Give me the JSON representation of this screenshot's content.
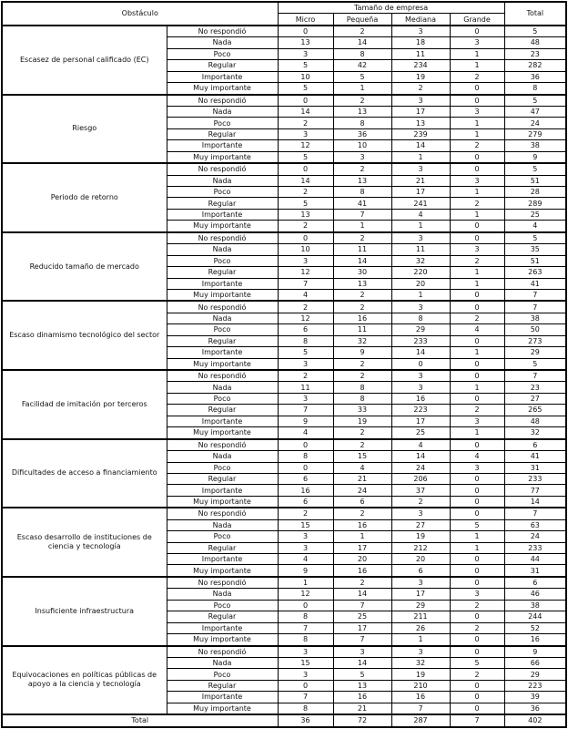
{
  "chart_data": {
    "type": "table",
    "title": "",
    "header": {
      "obstacle_label": "Obstáculo",
      "company_size_label": "Tamaño de empresa",
      "size_columns": [
        "Micro",
        "Pequeña",
        "Mediana",
        "Grande"
      ],
      "total_label": "Total"
    },
    "response_levels": [
      "No respondió",
      "Nada",
      "Poco",
      "Regular",
      "Importante",
      "Muy importante"
    ],
    "obstacles": [
      {
        "name": "Escasez de personal calificado (EC)",
        "values": [
          [
            0,
            2,
            3,
            0,
            5
          ],
          [
            13,
            14,
            18,
            3,
            48
          ],
          [
            3,
            8,
            11,
            1,
            23
          ],
          [
            5,
            42,
            234,
            1,
            282
          ],
          [
            10,
            5,
            19,
            2,
            36
          ],
          [
            5,
            1,
            2,
            0,
            8
          ]
        ]
      },
      {
        "name": "Riesgo",
        "values": [
          [
            0,
            2,
            3,
            0,
            5
          ],
          [
            14,
            13,
            17,
            3,
            47
          ],
          [
            2,
            8,
            13,
            1,
            24
          ],
          [
            3,
            36,
            239,
            1,
            279
          ],
          [
            12,
            10,
            14,
            2,
            38
          ],
          [
            5,
            3,
            1,
            0,
            9
          ]
        ]
      },
      {
        "name": "Periodo de retorno",
        "values": [
          [
            0,
            2,
            3,
            0,
            5
          ],
          [
            14,
            13,
            21,
            3,
            51
          ],
          [
            2,
            8,
            17,
            1,
            28
          ],
          [
            5,
            41,
            241,
            2,
            289
          ],
          [
            13,
            7,
            4,
            1,
            25
          ],
          [
            2,
            1,
            1,
            0,
            4
          ]
        ]
      },
      {
        "name": "Reducido tamaño de mercado",
        "values": [
          [
            0,
            2,
            3,
            0,
            5
          ],
          [
            10,
            11,
            11,
            3,
            35
          ],
          [
            3,
            14,
            32,
            2,
            51
          ],
          [
            12,
            30,
            220,
            1,
            263
          ],
          [
            7,
            13,
            20,
            1,
            41
          ],
          [
            4,
            2,
            1,
            0,
            7
          ]
        ]
      },
      {
        "name": "Escaso dinamismo tecnológico del sector",
        "values": [
          [
            2,
            2,
            3,
            0,
            7
          ],
          [
            12,
            16,
            8,
            2,
            38
          ],
          [
            6,
            11,
            29,
            4,
            50
          ],
          [
            8,
            32,
            233,
            0,
            273
          ],
          [
            5,
            9,
            14,
            1,
            29
          ],
          [
            3,
            2,
            0,
            0,
            5
          ]
        ]
      },
      {
        "name": "Facilidad de imitación por terceros",
        "values": [
          [
            2,
            2,
            3,
            0,
            7
          ],
          [
            11,
            8,
            3,
            1,
            23
          ],
          [
            3,
            8,
            16,
            0,
            27
          ],
          [
            7,
            33,
            223,
            2,
            265
          ],
          [
            9,
            19,
            17,
            3,
            48
          ],
          [
            4,
            2,
            25,
            1,
            32
          ]
        ]
      },
      {
        "name": "Dificultades de acceso a financiamiento",
        "values": [
          [
            0,
            2,
            4,
            0,
            6
          ],
          [
            8,
            15,
            14,
            4,
            41
          ],
          [
            0,
            4,
            24,
            3,
            31
          ],
          [
            6,
            21,
            206,
            0,
            233
          ],
          [
            16,
            24,
            37,
            0,
            77
          ],
          [
            6,
            6,
            2,
            0,
            14
          ]
        ]
      },
      {
        "name": "Escaso desarrollo de instituciones de ciencia y tecnología",
        "values": [
          [
            2,
            2,
            3,
            0,
            7
          ],
          [
            15,
            16,
            27,
            5,
            63
          ],
          [
            3,
            1,
            19,
            1,
            24
          ],
          [
            3,
            17,
            212,
            1,
            233
          ],
          [
            4,
            20,
            20,
            0,
            44
          ],
          [
            9,
            16,
            6,
            0,
            31
          ]
        ]
      },
      {
        "name": "Insuficiente infraestructura",
        "values": [
          [
            1,
            2,
            3,
            0,
            6
          ],
          [
            12,
            14,
            17,
            3,
            46
          ],
          [
            0,
            7,
            29,
            2,
            38
          ],
          [
            8,
            25,
            211,
            0,
            244
          ],
          [
            7,
            17,
            26,
            2,
            52
          ],
          [
            8,
            7,
            1,
            0,
            16
          ]
        ]
      },
      {
        "name": "Equivocaciones en políticas públicas de apoyo a la ciencia y tecnología",
        "values": [
          [
            3,
            3,
            3,
            0,
            9
          ],
          [
            15,
            14,
            32,
            5,
            66
          ],
          [
            3,
            5,
            19,
            2,
            29
          ],
          [
            0,
            13,
            210,
            0,
            223
          ],
          [
            7,
            16,
            16,
            0,
            39
          ],
          [
            8,
            21,
            7,
            0,
            36
          ]
        ]
      }
    ],
    "total_row": {
      "label": "Total",
      "values": [
        36,
        72,
        287,
        7,
        402
      ]
    }
  }
}
